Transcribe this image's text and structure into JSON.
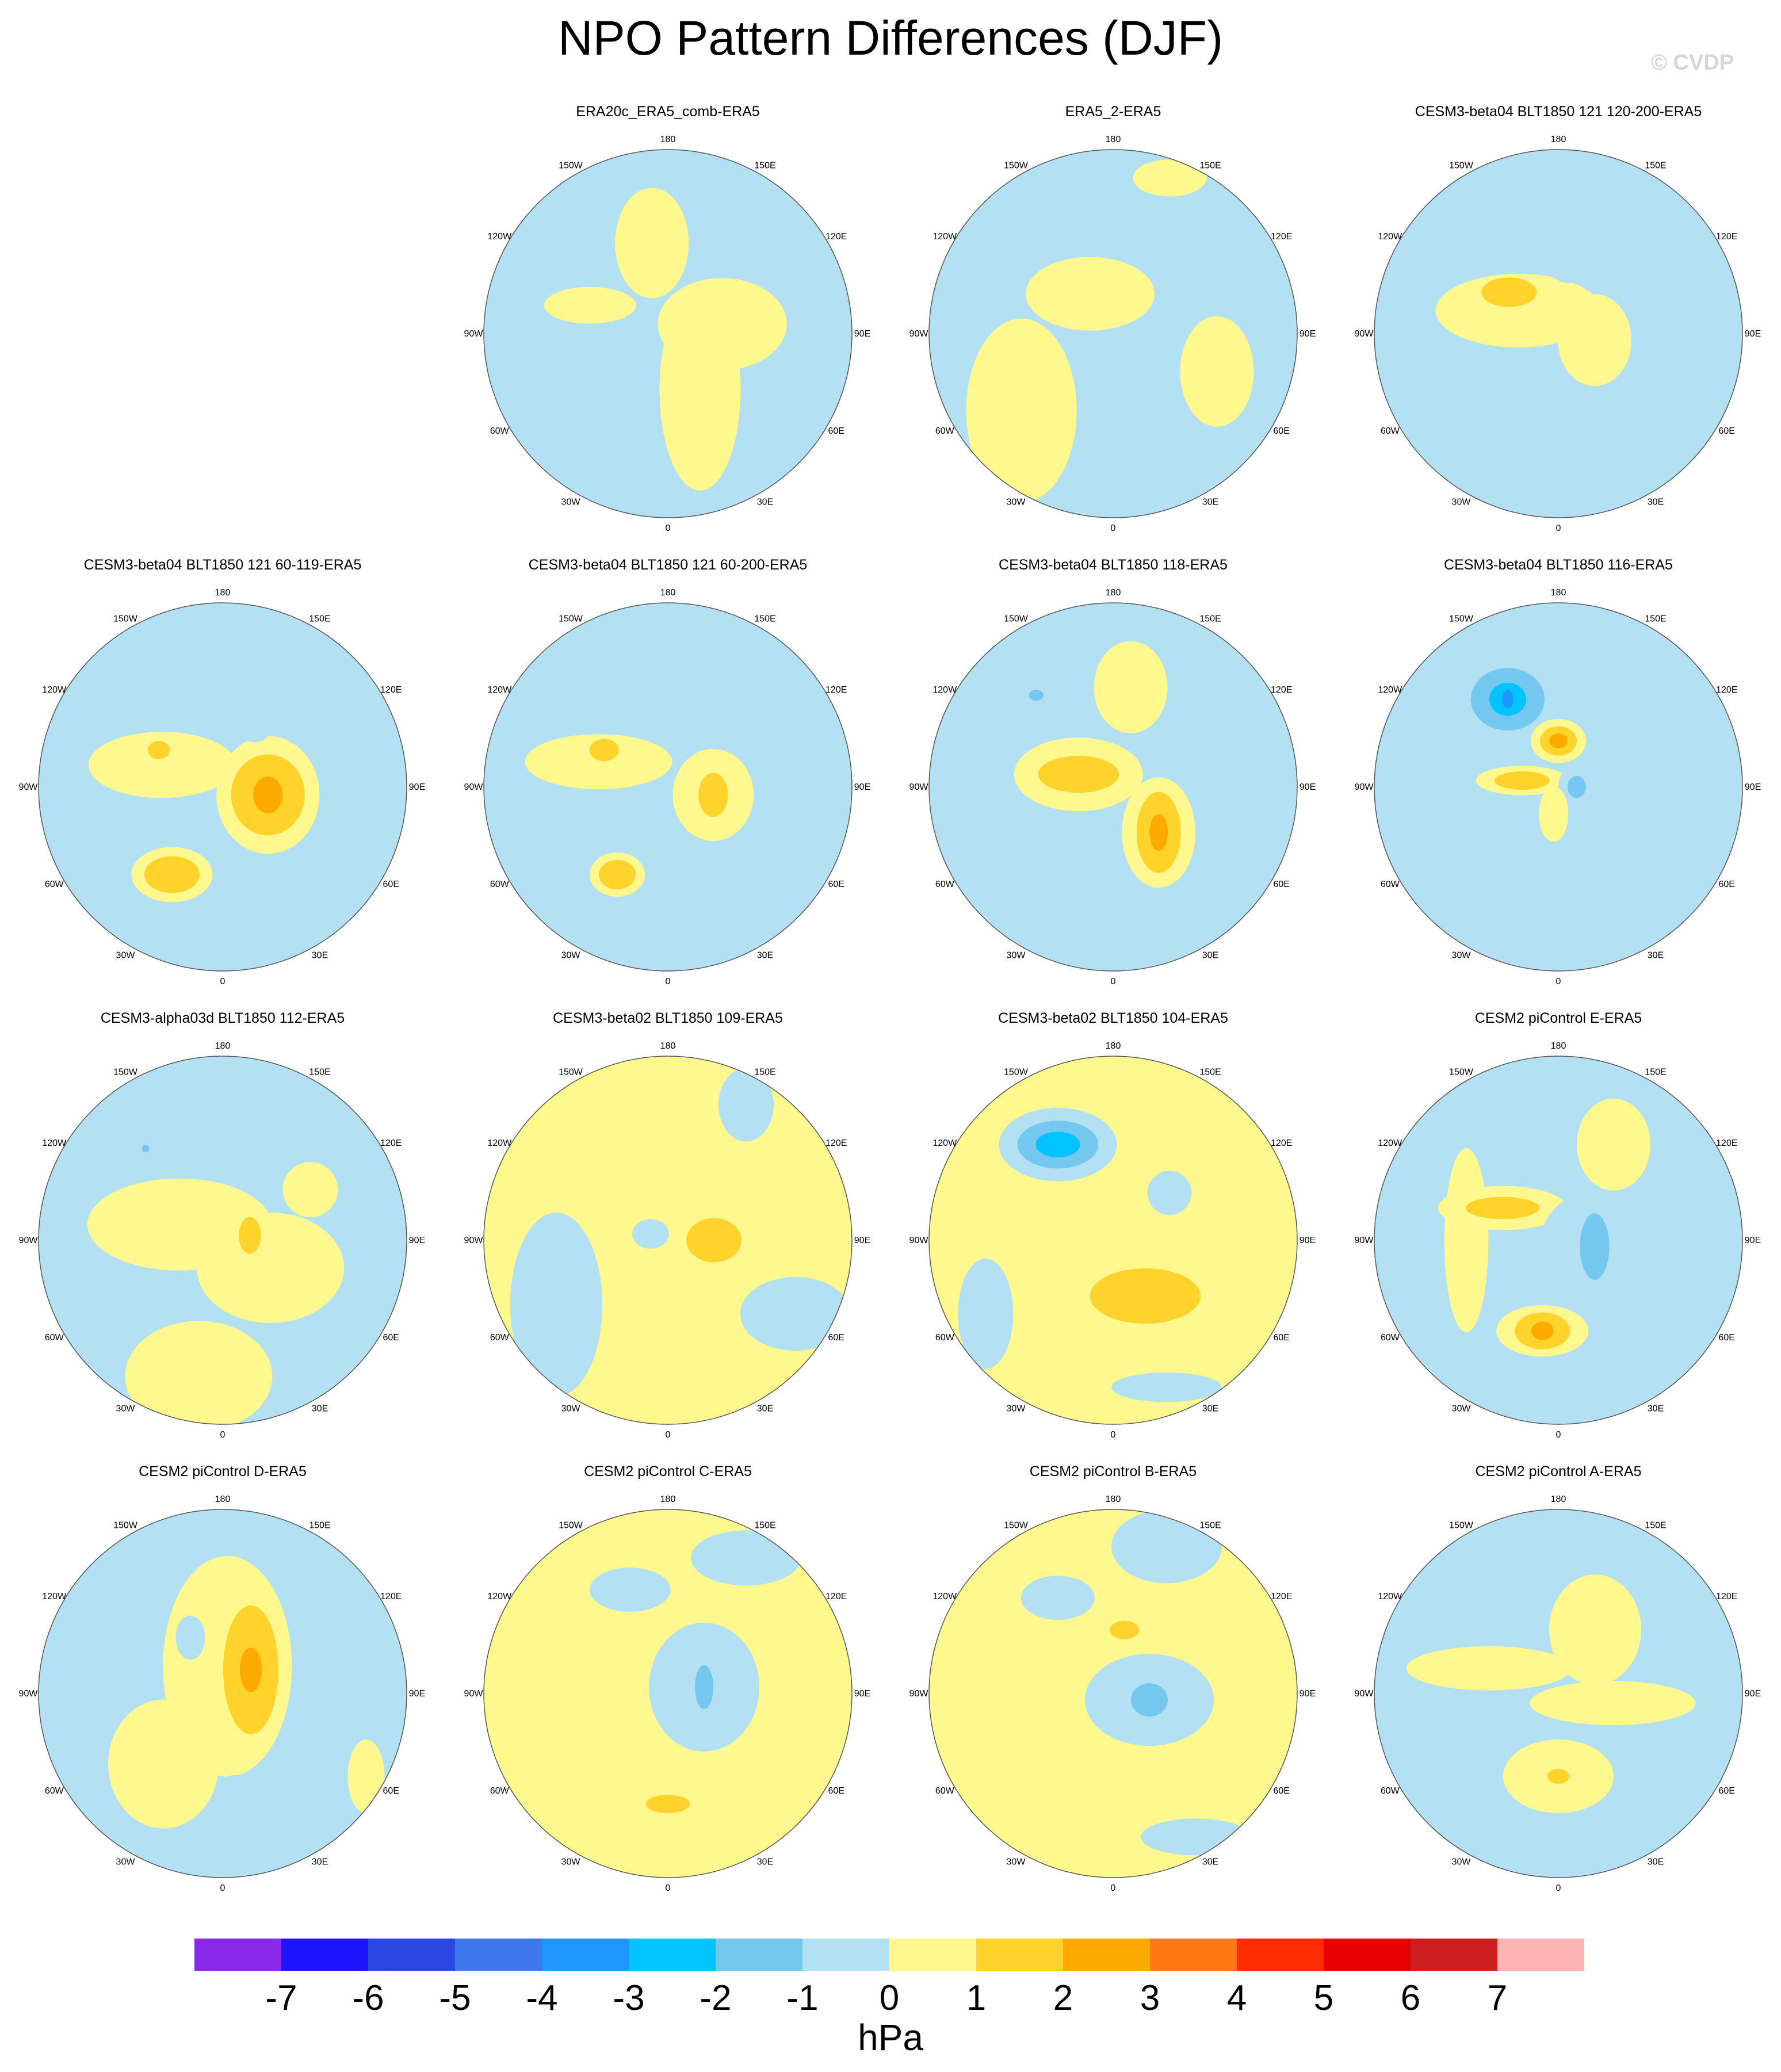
{
  "title": "NPO Pattern Differences (DJF)",
  "watermark": "© CVDP",
  "units": "hPa",
  "longitude_labels": [
    "180",
    "150E",
    "120E",
    "90E",
    "60E",
    "30E",
    "0",
    "30W",
    "60W",
    "90W",
    "120W",
    "150W"
  ],
  "colorbar": {
    "colors": [
      "#8a28e8",
      "#1e14ff",
      "#2c46e4",
      "#3c78ec",
      "#1e96ff",
      "#00c3ff",
      "#74c8f0",
      "#b4e0f4",
      "#fef88e",
      "#ffd32c",
      "#ffaa00",
      "#ff7814",
      "#ff2c00",
      "#e60000",
      "#cd1e1e",
      "#ffb4b4"
    ],
    "labels": [
      "-7",
      "-6",
      "-5",
      "-4",
      "-3",
      "-2",
      "-1",
      "0",
      "1",
      "2",
      "3",
      "4",
      "5",
      "6",
      "7"
    ]
  },
  "panels": [
    {
      "title": "",
      "empty": true
    },
    {
      "title": "ERA20c_ERA5_comb-ERA5",
      "base": "neg",
      "blobs": [
        {
          "lon": 30,
          "r": 0.35,
          "rx": 0.22,
          "ry": 0.55,
          "level": 1
        },
        {
          "lon": 190,
          "r": 0.5,
          "rx": 0.2,
          "ry": 0.3,
          "level": 1
        },
        {
          "lon": 100,
          "r": 0.3,
          "rx": 0.35,
          "ry": 0.25,
          "level": 1
        },
        {
          "lon": 250,
          "r": 0.45,
          "rx": 0.25,
          "ry": 0.1,
          "level": 1
        }
      ]
    },
    {
      "title": "ERA5_2-ERA5",
      "base": "neg",
      "blobs": [
        {
          "lon": 310,
          "r": 0.65,
          "rx": 0.3,
          "ry": 0.5,
          "level": 1
        },
        {
          "lon": 210,
          "r": 0.25,
          "rx": 0.35,
          "ry": 0.2,
          "level": 1
        },
        {
          "lon": 70,
          "r": 0.6,
          "rx": 0.2,
          "ry": 0.3,
          "level": 1
        },
        {
          "lon": 160,
          "r": 0.9,
          "rx": 0.2,
          "ry": 0.1,
          "level": 1
        }
      ]
    },
    {
      "title": "CESM3-beta04 BLT1850 121 120-200-ERA5",
      "base": "neg",
      "blobs": [
        {
          "lon": 240,
          "r": 0.25,
          "rx": 0.45,
          "ry": 0.2,
          "level": 1
        },
        {
          "lon": 230,
          "r": 0.35,
          "rx": 0.15,
          "ry": 0.08,
          "level": 2
        },
        {
          "lon": 170,
          "r": 0.35,
          "rx": 0.1,
          "ry": 0.07,
          "level": -1
        },
        {
          "lon": 210,
          "r": 0.85,
          "rx": 0.1,
          "ry": 0.08,
          "level": -1
        },
        {
          "lon": 80,
          "r": 0.2,
          "rx": 0.2,
          "ry": 0.25,
          "level": 1
        }
      ]
    },
    {
      "title": "CESM3-beta04 BLT1850 121 60-119-ERA5",
      "base": "neg",
      "blobs": [
        {
          "lon": 80,
          "r": 0.25,
          "rx": 0.28,
          "ry": 0.32,
          "level": 1
        },
        {
          "lon": 80,
          "r": 0.25,
          "rx": 0.2,
          "ry": 0.22,
          "level": 2
        },
        {
          "lon": 80,
          "r": 0.25,
          "rx": 0.08,
          "ry": 0.1,
          "level": 3
        },
        {
          "lon": 330,
          "r": 0.55,
          "rx": 0.22,
          "ry": 0.15,
          "level": 1
        },
        {
          "lon": 330,
          "r": 0.55,
          "rx": 0.15,
          "ry": 0.1,
          "level": 2
        },
        {
          "lon": 250,
          "r": 0.35,
          "rx": 0.4,
          "ry": 0.18,
          "level": 1
        },
        {
          "lon": 240,
          "r": 0.4,
          "rx": 0.06,
          "ry": 0.05,
          "level": 2
        },
        {
          "lon": 150,
          "r": 0.35,
          "rx": 0.08,
          "ry": 0.06,
          "level": -1
        }
      ]
    },
    {
      "title": "CESM3-beta04 BLT1850 121 60-200-ERA5",
      "base": "neg",
      "blobs": [
        {
          "lon": 80,
          "r": 0.25,
          "rx": 0.22,
          "ry": 0.25,
          "level": 1
        },
        {
          "lon": 80,
          "r": 0.25,
          "rx": 0.08,
          "ry": 0.12,
          "level": 2
        },
        {
          "lon": 330,
          "r": 0.55,
          "rx": 0.15,
          "ry": 0.12,
          "level": 1
        },
        {
          "lon": 330,
          "r": 0.55,
          "rx": 0.1,
          "ry": 0.08,
          "level": 2
        },
        {
          "lon": 250,
          "r": 0.4,
          "rx": 0.4,
          "ry": 0.15,
          "level": 1
        },
        {
          "lon": 240,
          "r": 0.4,
          "rx": 0.08,
          "ry": 0.06,
          "level": 2
        },
        {
          "lon": 150,
          "r": 0.35,
          "rx": 0.07,
          "ry": 0.05,
          "level": -1
        }
      ]
    },
    {
      "title": "CESM3-beta04 BLT1850 118-ERA5",
      "base": "neg",
      "blobs": [
        {
          "lon": 45,
          "r": 0.35,
          "rx": 0.2,
          "ry": 0.3,
          "level": 1
        },
        {
          "lon": 45,
          "r": 0.35,
          "rx": 0.12,
          "ry": 0.22,
          "level": 2
        },
        {
          "lon": 45,
          "r": 0.35,
          "rx": 0.05,
          "ry": 0.1,
          "level": 3
        },
        {
          "lon": 250,
          "r": 0.2,
          "rx": 0.35,
          "ry": 0.2,
          "level": 1
        },
        {
          "lon": 250,
          "r": 0.2,
          "rx": 0.22,
          "ry": 0.1,
          "level": 2
        },
        {
          "lon": 220,
          "r": 0.65,
          "rx": 0.18,
          "ry": 0.15,
          "level": -1
        },
        {
          "lon": 220,
          "r": 0.65,
          "rx": 0.04,
          "ry": 0.03,
          "level": -2
        },
        {
          "lon": 10,
          "r": 0.7,
          "rx": 0.22,
          "ry": 0.1,
          "level": -1
        },
        {
          "lon": 170,
          "r": 0.55,
          "rx": 0.2,
          "ry": 0.25,
          "level": 1
        }
      ]
    },
    {
      "title": "CESM3-beta04 BLT1850 116-ERA5",
      "base": "neg",
      "blobs": [
        {
          "lon": 210,
          "r": 0.55,
          "rx": 0.3,
          "ry": 0.24,
          "level": -1
        },
        {
          "lon": 210,
          "r": 0.55,
          "rx": 0.2,
          "ry": 0.17,
          "level": -2
        },
        {
          "lon": 210,
          "r": 0.55,
          "rx": 0.1,
          "ry": 0.09,
          "level": -3
        },
        {
          "lon": 210,
          "r": 0.55,
          "rx": 0.03,
          "ry": 0.05,
          "level": -4
        },
        {
          "lon": 180,
          "r": 0.25,
          "rx": 0.15,
          "ry": 0.12,
          "level": 1
        },
        {
          "lon": 180,
          "r": 0.25,
          "rx": 0.1,
          "ry": 0.08,
          "level": 2
        },
        {
          "lon": 180,
          "r": 0.25,
          "rx": 0.05,
          "ry": 0.04,
          "level": 3
        },
        {
          "lon": 260,
          "r": 0.2,
          "rx": 0.25,
          "ry": 0.08,
          "level": 1
        },
        {
          "lon": 260,
          "r": 0.2,
          "rx": 0.15,
          "ry": 0.05,
          "level": 2
        },
        {
          "lon": 90,
          "r": 0.1,
          "rx": 0.1,
          "ry": 0.12,
          "level": -1
        },
        {
          "lon": 90,
          "r": 0.1,
          "rx": 0.05,
          "ry": 0.06,
          "level": -2
        },
        {
          "lon": 20,
          "r": 0.65,
          "rx": 0.25,
          "ry": 0.12,
          "level": -1
        },
        {
          "lon": 350,
          "r": 0.15,
          "rx": 0.08,
          "ry": 0.15,
          "level": 1
        }
      ]
    },
    {
      "title": "CESM3-alpha03d BLT1850 112-ERA5",
      "base": "neg",
      "blobs": [
        {
          "lon": 250,
          "r": 0.25,
          "rx": 0.5,
          "ry": 0.25,
          "level": 1
        },
        {
          "lon": 60,
          "r": 0.3,
          "rx": 0.4,
          "ry": 0.3,
          "level": 1
        },
        {
          "lon": 350,
          "r": 0.75,
          "rx": 0.4,
          "ry": 0.3,
          "level": 1
        },
        {
          "lon": 120,
          "r": 0.55,
          "rx": 0.15,
          "ry": 0.15,
          "level": 1
        },
        {
          "lon": 100,
          "r": 0.15,
          "rx": 0.06,
          "ry": 0.1,
          "level": 2
        },
        {
          "lon": 220,
          "r": 0.65,
          "rx": 0.2,
          "ry": 0.12,
          "level": -1
        },
        {
          "lon": 220,
          "r": 0.65,
          "rx": 0.02,
          "ry": 0.02,
          "level": -2
        }
      ]
    },
    {
      "title": "CESM3-beta02 BLT1850 109-ERA5",
      "base": "pos",
      "blobs": [
        {
          "lon": 300,
          "r": 0.7,
          "rx": 0.25,
          "ry": 0.5,
          "level": -1
        },
        {
          "lon": 60,
          "r": 0.8,
          "rx": 0.3,
          "ry": 0.2,
          "level": -1
        },
        {
          "lon": 250,
          "r": 0.1,
          "rx": 0.1,
          "ry": 0.08,
          "level": -1
        },
        {
          "lon": 90,
          "r": 0.25,
          "rx": 0.15,
          "ry": 0.12,
          "level": 2
        },
        {
          "lon": 150,
          "r": 0.85,
          "rx": 0.15,
          "ry": 0.2,
          "level": -1
        }
      ]
    },
    {
      "title": "CESM3-beta02 BLT1850 104-ERA5",
      "base": "pos",
      "blobs": [
        {
          "lon": 210,
          "r": 0.6,
          "rx": 0.32,
          "ry": 0.2,
          "level": -1
        },
        {
          "lon": 210,
          "r": 0.6,
          "rx": 0.22,
          "ry": 0.13,
          "level": -2
        },
        {
          "lon": 210,
          "r": 0.6,
          "rx": 0.12,
          "ry": 0.07,
          "level": -3
        },
        {
          "lon": 30,
          "r": 0.35,
          "rx": 0.3,
          "ry": 0.15,
          "level": 2
        },
        {
          "lon": 130,
          "r": 0.4,
          "rx": 0.12,
          "ry": 0.12,
          "level": -1
        },
        {
          "lon": 300,
          "r": 0.8,
          "rx": 0.15,
          "ry": 0.3,
          "level": -1
        },
        {
          "lon": 20,
          "r": 0.85,
          "rx": 0.3,
          "ry": 0.08,
          "level": -1
        }
      ]
    },
    {
      "title": "CESM2 piControl E-ERA5",
      "base": "neg",
      "blobs": [
        {
          "lon": 150,
          "r": 0.6,
          "rx": 0.2,
          "ry": 0.25,
          "level": 1
        },
        {
          "lon": 270,
          "r": 0.5,
          "rx": 0.12,
          "ry": 0.5,
          "level": 1
        },
        {
          "lon": 240,
          "r": 0.35,
          "rx": 0.35,
          "ry": 0.12,
          "level": 1
        },
        {
          "lon": 240,
          "r": 0.35,
          "rx": 0.2,
          "ry": 0.06,
          "level": 2
        },
        {
          "lon": 350,
          "r": 0.5,
          "rx": 0.25,
          "ry": 0.14,
          "level": 1
        },
        {
          "lon": 350,
          "r": 0.5,
          "rx": 0.15,
          "ry": 0.1,
          "level": 2
        },
        {
          "lon": 350,
          "r": 0.5,
          "rx": 0.06,
          "ry": 0.05,
          "level": 3
        },
        {
          "lon": 80,
          "r": 0.2,
          "rx": 0.3,
          "ry": 0.3,
          "level": -1
        },
        {
          "lon": 80,
          "r": 0.2,
          "rx": 0.08,
          "ry": 0.18,
          "level": -2
        },
        {
          "lon": 210,
          "r": 0.75,
          "rx": 0.2,
          "ry": 0.12,
          "level": -1
        }
      ]
    },
    {
      "title": "CESM2 piControl D-ERA5",
      "base": "neg",
      "blobs": [
        {
          "lon": 170,
          "r": 0.15,
          "rx": 0.35,
          "ry": 0.6,
          "level": 1
        },
        {
          "lon": 120,
          "r": 0.15,
          "rx": 0.22,
          "ry": 0.45,
          "level": 1
        },
        {
          "lon": 130,
          "r": 0.2,
          "rx": 0.15,
          "ry": 0.35,
          "level": 2
        },
        {
          "lon": 130,
          "r": 0.2,
          "rx": 0.06,
          "ry": 0.12,
          "level": 3
        },
        {
          "lon": 210,
          "r": 0.35,
          "rx": 0.08,
          "ry": 0.12,
          "level": -1
        },
        {
          "lon": 320,
          "r": 0.5,
          "rx": 0.3,
          "ry": 0.35,
          "level": 1
        },
        {
          "lon": 10,
          "r": 0.5,
          "rx": 0.12,
          "ry": 0.05,
          "level": -1
        },
        {
          "lon": 60,
          "r": 0.9,
          "rx": 0.1,
          "ry": 0.2,
          "level": 1
        }
      ]
    },
    {
      "title": "CESM2 piControl C-ERA5",
      "base": "pos",
      "blobs": [
        {
          "lon": 100,
          "r": 0.2,
          "rx": 0.3,
          "ry": 0.35,
          "level": -1
        },
        {
          "lon": 100,
          "r": 0.2,
          "rx": 0.05,
          "ry": 0.12,
          "level": -2
        },
        {
          "lon": 200,
          "r": 0.6,
          "rx": 0.22,
          "ry": 0.12,
          "level": -1
        },
        {
          "lon": 150,
          "r": 0.85,
          "rx": 0.3,
          "ry": 0.15,
          "level": -1
        },
        {
          "lon": 0,
          "r": 0.6,
          "rx": 0.2,
          "ry": 0.1,
          "level": 1
        },
        {
          "lon": 0,
          "r": 0.6,
          "rx": 0.12,
          "ry": 0.05,
          "level": 2
        }
      ]
    },
    {
      "title": "CESM2 piControl B-ERA5",
      "base": "pos",
      "blobs": [
        {
          "lon": 80,
          "r": 0.2,
          "rx": 0.35,
          "ry": 0.25,
          "level": -1
        },
        {
          "lon": 80,
          "r": 0.2,
          "rx": 0.1,
          "ry": 0.09,
          "level": -2
        },
        {
          "lon": 210,
          "r": 0.6,
          "rx": 0.2,
          "ry": 0.12,
          "level": -1
        },
        {
          "lon": 160,
          "r": 0.85,
          "rx": 0.3,
          "ry": 0.2,
          "level": -1
        },
        {
          "lon": 170,
          "r": 0.35,
          "rx": 0.08,
          "ry": 0.05,
          "level": 2
        },
        {
          "lon": 30,
          "r": 0.9,
          "rx": 0.3,
          "ry": 0.1,
          "level": -1
        }
      ]
    },
    {
      "title": "CESM2 piControl A-ERA5",
      "base": "neg",
      "blobs": [
        {
          "lon": 0,
          "r": 0.45,
          "rx": 0.3,
          "ry": 0.2,
          "level": 1
        },
        {
          "lon": 0,
          "r": 0.45,
          "rx": 0.06,
          "ry": 0.04,
          "level": 2
        },
        {
          "lon": 250,
          "r": 0.4,
          "rx": 0.45,
          "ry": 0.12,
          "level": 1
        },
        {
          "lon": 80,
          "r": 0.3,
          "rx": 0.45,
          "ry": 0.12,
          "level": 1
        },
        {
          "lon": 150,
          "r": 0.4,
          "rx": 0.25,
          "ry": 0.3,
          "level": 1
        }
      ]
    }
  ]
}
